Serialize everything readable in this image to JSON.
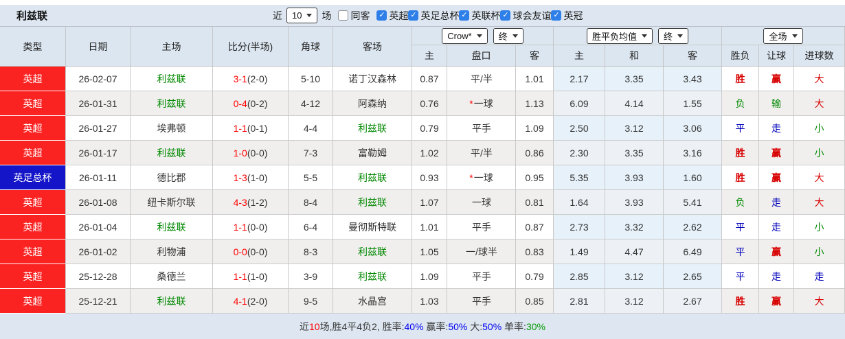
{
  "title": "利兹联",
  "controls": {
    "recent_label": "近",
    "recent_value": "10",
    "matches_label": "场",
    "same_opponent_label": "同客",
    "leagues": [
      "英超",
      "英足总杯",
      "英联杯",
      "球会友谊",
      "英冠"
    ],
    "leagues_checked": [
      true,
      true,
      true,
      true,
      true
    ],
    "same_opponent_checked": false,
    "checkbox_color": "#2f7fe8"
  },
  "header": {
    "main_cols": [
      "类型",
      "日期",
      "主场",
      "比分(半场)",
      "角球",
      "客场"
    ],
    "sub_cols": [
      "主",
      "盘口",
      "客",
      "主",
      "和",
      "客",
      "胜负",
      "让球",
      "进球数"
    ],
    "odds_select": "Crow*",
    "odds_final_select": "终",
    "avg_select": "胜平负均值",
    "avg_final_select": "终",
    "scope_select": "全场"
  },
  "palette": {
    "win_red": "#d70000",
    "lose_green": "#008800",
    "draw_blue": "#0000bb",
    "league_red_bg": "#fb2222",
    "cup_blue_bg": "#1414c8",
    "self_team_green": "#008800",
    "avg_col_bg": "#e6f1f9"
  },
  "rows": [
    {
      "type": {
        "text": "英超",
        "style": "red"
      },
      "date": "26-02-07",
      "home": {
        "text": "利兹联",
        "self": true
      },
      "score": {
        "main": "3-1",
        "half": "(2-0)"
      },
      "corners": "5-10",
      "away": {
        "text": "诺丁汉森林",
        "self": false
      },
      "odds_home": "0.87",
      "handicap": {
        "star": "",
        "text": "平/半"
      },
      "odds_away": "1.01",
      "avg_home": "2.17",
      "avg_draw": "3.35",
      "avg_away": "3.43",
      "result": {
        "text": "胜",
        "color": "red"
      },
      "let_result": {
        "text": "赢",
        "color": "red"
      },
      "goal_result": {
        "text": "大",
        "color": "red"
      }
    },
    {
      "type": {
        "text": "英超",
        "style": "red"
      },
      "date": "26-01-31",
      "home": {
        "text": "利兹联",
        "self": true
      },
      "score": {
        "main": "0-4",
        "half": "(0-2)"
      },
      "corners": "4-12",
      "away": {
        "text": "阿森纳",
        "self": false
      },
      "odds_home": "0.76",
      "handicap": {
        "star": "*",
        "text": "一球"
      },
      "odds_away": "1.13",
      "avg_home": "6.09",
      "avg_draw": "4.14",
      "avg_away": "1.55",
      "result": {
        "text": "负",
        "color": "green"
      },
      "let_result": {
        "text": "输",
        "color": "green"
      },
      "goal_result": {
        "text": "大",
        "color": "red"
      }
    },
    {
      "type": {
        "text": "英超",
        "style": "red"
      },
      "date": "26-01-27",
      "home": {
        "text": "埃弗顿",
        "self": false
      },
      "score": {
        "main": "1-1",
        "half": "(0-1)"
      },
      "corners": "4-4",
      "away": {
        "text": "利兹联",
        "self": true
      },
      "odds_home": "0.79",
      "handicap": {
        "star": "",
        "text": "平手"
      },
      "odds_away": "1.09",
      "avg_home": "2.50",
      "avg_draw": "3.12",
      "avg_away": "3.06",
      "result": {
        "text": "平",
        "color": "blue"
      },
      "let_result": {
        "text": "走",
        "color": "blue"
      },
      "goal_result": {
        "text": "小",
        "color": "green"
      }
    },
    {
      "type": {
        "text": "英超",
        "style": "red"
      },
      "date": "26-01-17",
      "home": {
        "text": "利兹联",
        "self": true
      },
      "score": {
        "main": "1-0",
        "half": "(0-0)"
      },
      "corners": "7-3",
      "away": {
        "text": "富勒姆",
        "self": false
      },
      "odds_home": "1.02",
      "handicap": {
        "star": "",
        "text": "平/半"
      },
      "odds_away": "0.86",
      "avg_home": "2.30",
      "avg_draw": "3.35",
      "avg_away": "3.16",
      "result": {
        "text": "胜",
        "color": "red"
      },
      "let_result": {
        "text": "赢",
        "color": "red"
      },
      "goal_result": {
        "text": "小",
        "color": "green"
      }
    },
    {
      "type": {
        "text": "英足总杯",
        "style": "blue"
      },
      "date": "26-01-11",
      "home": {
        "text": "德比郡",
        "self": false
      },
      "score": {
        "main": "1-3",
        "half": "(1-0)"
      },
      "corners": "5-5",
      "away": {
        "text": "利兹联",
        "self": true
      },
      "odds_home": "0.93",
      "handicap": {
        "star": "*",
        "text": "一球"
      },
      "odds_away": "0.95",
      "avg_home": "5.35",
      "avg_draw": "3.93",
      "avg_away": "1.60",
      "result": {
        "text": "胜",
        "color": "red"
      },
      "let_result": {
        "text": "赢",
        "color": "red"
      },
      "goal_result": {
        "text": "大",
        "color": "red"
      }
    },
    {
      "type": {
        "text": "英超",
        "style": "red"
      },
      "date": "26-01-08",
      "home": {
        "text": "纽卡斯尔联",
        "self": false
      },
      "score": {
        "main": "4-3",
        "half": "(1-2)"
      },
      "corners": "8-4",
      "away": {
        "text": "利兹联",
        "self": true
      },
      "odds_home": "1.07",
      "handicap": {
        "star": "",
        "text": "一球"
      },
      "odds_away": "0.81",
      "avg_home": "1.64",
      "avg_draw": "3.93",
      "avg_away": "5.41",
      "result": {
        "text": "负",
        "color": "green"
      },
      "let_result": {
        "text": "走",
        "color": "blue"
      },
      "goal_result": {
        "text": "大",
        "color": "red"
      }
    },
    {
      "type": {
        "text": "英超",
        "style": "red"
      },
      "date": "26-01-04",
      "home": {
        "text": "利兹联",
        "self": true
      },
      "score": {
        "main": "1-1",
        "half": "(0-0)"
      },
      "corners": "6-4",
      "away": {
        "text": "曼彻斯特联",
        "self": false
      },
      "odds_home": "1.01",
      "handicap": {
        "star": "",
        "text": "平手"
      },
      "odds_away": "0.87",
      "avg_home": "2.73",
      "avg_draw": "3.32",
      "avg_away": "2.62",
      "result": {
        "text": "平",
        "color": "blue"
      },
      "let_result": {
        "text": "走",
        "color": "blue"
      },
      "goal_result": {
        "text": "小",
        "color": "green"
      }
    },
    {
      "type": {
        "text": "英超",
        "style": "red"
      },
      "date": "26-01-02",
      "home": {
        "text": "利物浦",
        "self": false
      },
      "score": {
        "main": "0-0",
        "half": "(0-0)"
      },
      "corners": "8-3",
      "away": {
        "text": "利兹联",
        "self": true
      },
      "odds_home": "1.05",
      "handicap": {
        "star": "",
        "text": "一/球半"
      },
      "odds_away": "0.83",
      "avg_home": "1.49",
      "avg_draw": "4.47",
      "avg_away": "6.49",
      "result": {
        "text": "平",
        "color": "blue"
      },
      "let_result": {
        "text": "赢",
        "color": "red"
      },
      "goal_result": {
        "text": "小",
        "color": "green"
      }
    },
    {
      "type": {
        "text": "英超",
        "style": "red"
      },
      "date": "25-12-28",
      "home": {
        "text": "桑德兰",
        "self": false
      },
      "score": {
        "main": "1-1",
        "half": "(1-0)"
      },
      "corners": "3-9",
      "away": {
        "text": "利兹联",
        "self": true
      },
      "odds_home": "1.09",
      "handicap": {
        "star": "",
        "text": "平手"
      },
      "odds_away": "0.79",
      "avg_home": "2.85",
      "avg_draw": "3.12",
      "avg_away": "2.65",
      "result": {
        "text": "平",
        "color": "blue"
      },
      "let_result": {
        "text": "走",
        "color": "blue"
      },
      "goal_result": {
        "text": "走",
        "color": "blue"
      }
    },
    {
      "type": {
        "text": "英超",
        "style": "red"
      },
      "date": "25-12-21",
      "home": {
        "text": "利兹联",
        "self": true
      },
      "score": {
        "main": "4-1",
        "half": "(2-0)"
      },
      "corners": "9-5",
      "away": {
        "text": "水晶宫",
        "self": false
      },
      "odds_home": "1.03",
      "handicap": {
        "star": "",
        "text": "平手"
      },
      "odds_away": "0.85",
      "avg_home": "2.81",
      "avg_draw": "3.12",
      "avg_away": "2.67",
      "result": {
        "text": "胜",
        "color": "red"
      },
      "let_result": {
        "text": "赢",
        "color": "red"
      },
      "goal_result": {
        "text": "大",
        "color": "red"
      }
    }
  ],
  "summary": {
    "segments": [
      {
        "text": "近",
        "color": "#333333"
      },
      {
        "text": "10",
        "color": "#ff0000"
      },
      {
        "text": "场,胜4平4负2, 胜率:",
        "color": "#333333"
      },
      {
        "text": "40%",
        "color": "#0000ee"
      },
      {
        "text": " 赢率:",
        "color": "#333333"
      },
      {
        "text": "50%",
        "color": "#0000ee"
      },
      {
        "text": " 大:",
        "color": "#333333"
      },
      {
        "text": "50%",
        "color": "#0000ee"
      },
      {
        "text": " 单率:",
        "color": "#333333"
      },
      {
        "text": "30%",
        "color": "#009900"
      }
    ]
  }
}
